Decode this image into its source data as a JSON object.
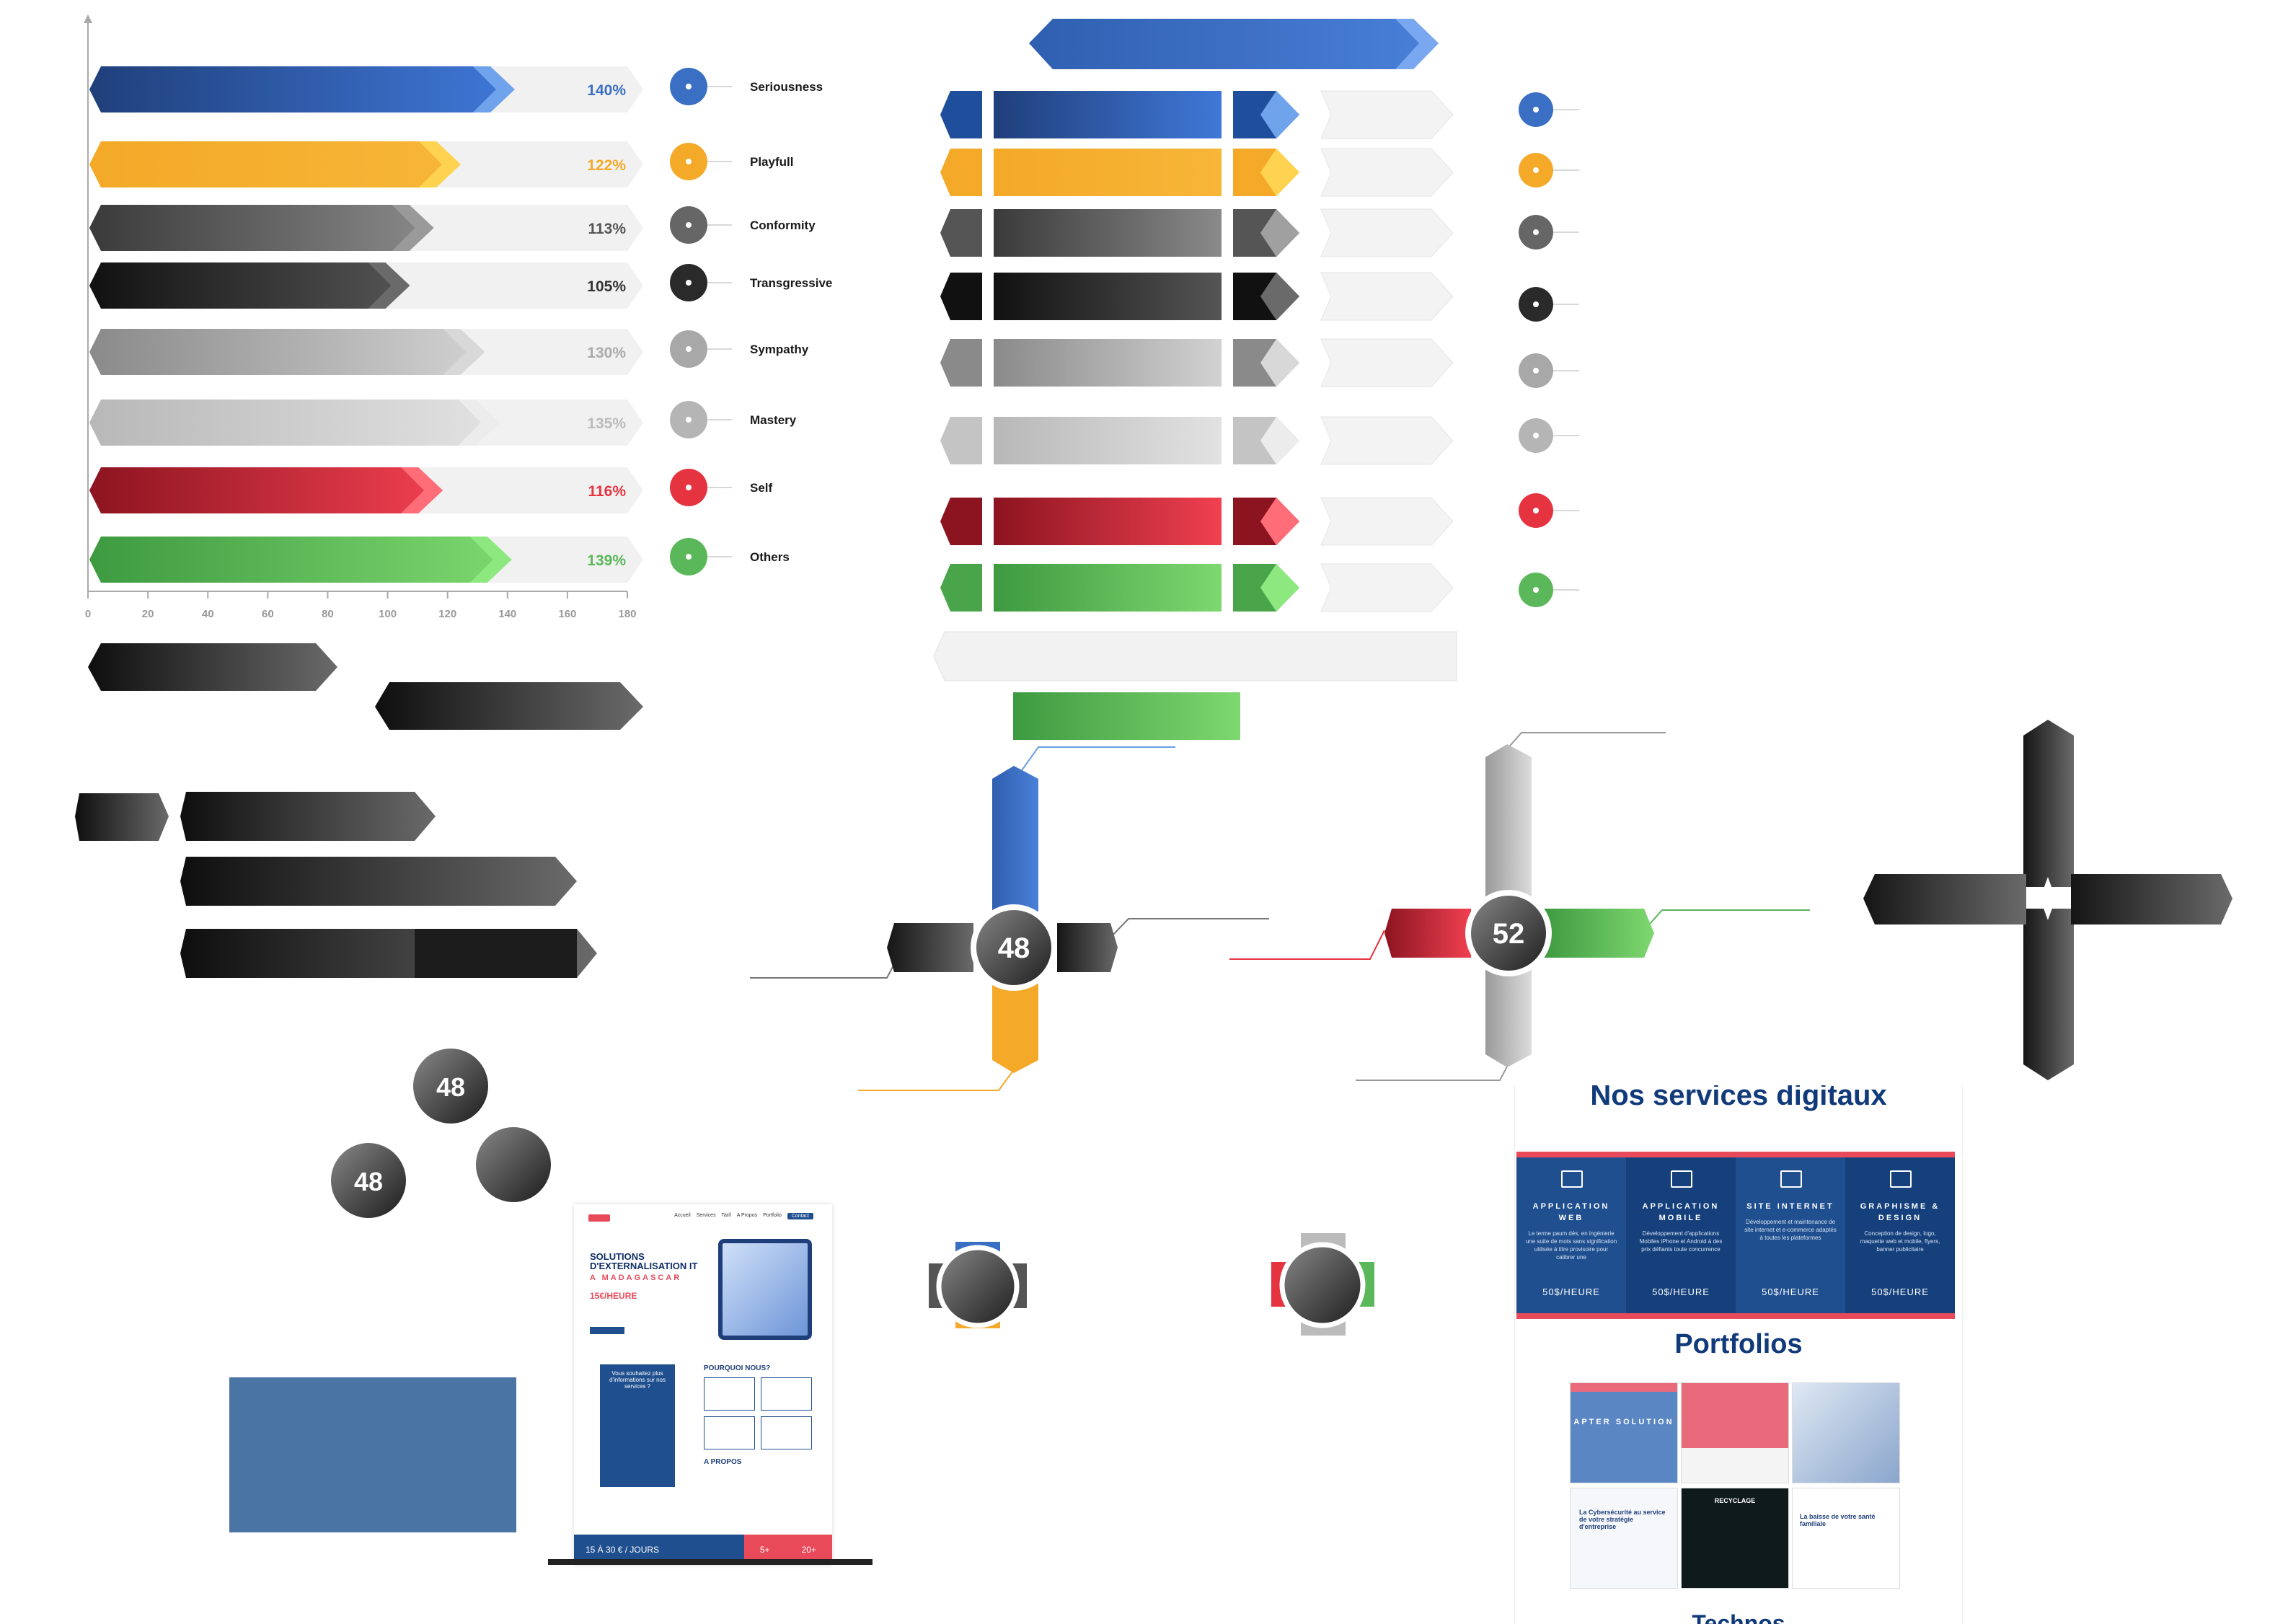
{
  "colors": {
    "blue": "#3a6fc4",
    "yellow": "#f4a928",
    "gray": "#666666",
    "dark": "#2a2a2a",
    "silver": "#a8a8a8",
    "light": "#cfcfcf",
    "red": "#e63340",
    "green": "#5bb85a",
    "track": "#f1f1f1",
    "mock_blue": "#1f4f8f",
    "mock_red": "#e84a5a"
  },
  "chart_data": {
    "type": "bar",
    "orientation": "horizontal",
    "categories": [
      "Seriousness",
      "Playfull",
      "Conformity",
      "Transgressive",
      "Sympathy",
      "Mastery",
      "Self",
      "Others"
    ],
    "values": [
      140,
      122,
      113,
      105,
      130,
      135,
      116,
      139
    ],
    "value_labels": [
      "140%",
      "122%",
      "113%",
      "105%",
      "130%",
      "135%",
      "116%",
      "139%"
    ],
    "xticks": [
      0,
      20,
      40,
      60,
      80,
      100,
      120,
      140,
      160,
      180
    ],
    "xlim": [
      0,
      180
    ],
    "legend_placement": "right",
    "grid": false
  },
  "hub_numbers": {
    "hub_a": "48",
    "hub_b": "52",
    "circle_a": "48",
    "circle_b": "48"
  },
  "services": {
    "title": "Nos services digitaux",
    "cards": [
      {
        "title": "APPLICATION WEB",
        "desc": "Le terme paum dés, en ingénierie une suite de mots sans signification utilisée à titre provisoire pour calibrer une",
        "price": "50$/HEURE"
      },
      {
        "title": "APPLICATION MOBILE",
        "desc": "Développement d'applications Mobiles iPhone et Android à des prix défiants toute concurrence",
        "price": "50$/HEURE"
      },
      {
        "title": "SITE INTERNET",
        "desc": "Développement et maintenance de site internet et e-commerce adaptés à toutes les plateformes",
        "price": "50$/HEURE"
      },
      {
        "title": "GRAPHISME & DESIGN",
        "desc": "Conception de design, logo, maquette web et mobile, flyers, banner publicitaire",
        "price": "50$/HEURE"
      }
    ],
    "portfolio_title": "Portfolios",
    "portfolio_items": [
      "APTER SOLUTION",
      "",
      "",
      "La Cybersécurité au service de votre stratégie d'entreprise",
      "RECYCLAGE",
      "La baisse de votre santé familiale"
    ],
    "next_title": "Technos"
  },
  "landing": {
    "nav": [
      "Accueil",
      "Services",
      "Tarif",
      "A Propos",
      "Portfolio"
    ],
    "nav_button": "Contact",
    "headline": "SOLUTIONS D'EXTERNALISATION IT",
    "subheadline": "A MADAGASCAR",
    "price": "15€/HEURE",
    "form_title": "Vous souhaitez plus d'informations sur nos services ?",
    "why_title": "POURQUOI NOUS?",
    "about_title": "A PROPOS",
    "footer_left": "15 À 30 € / JOURS",
    "footer_mid": "5+",
    "footer_right": "20+"
  }
}
